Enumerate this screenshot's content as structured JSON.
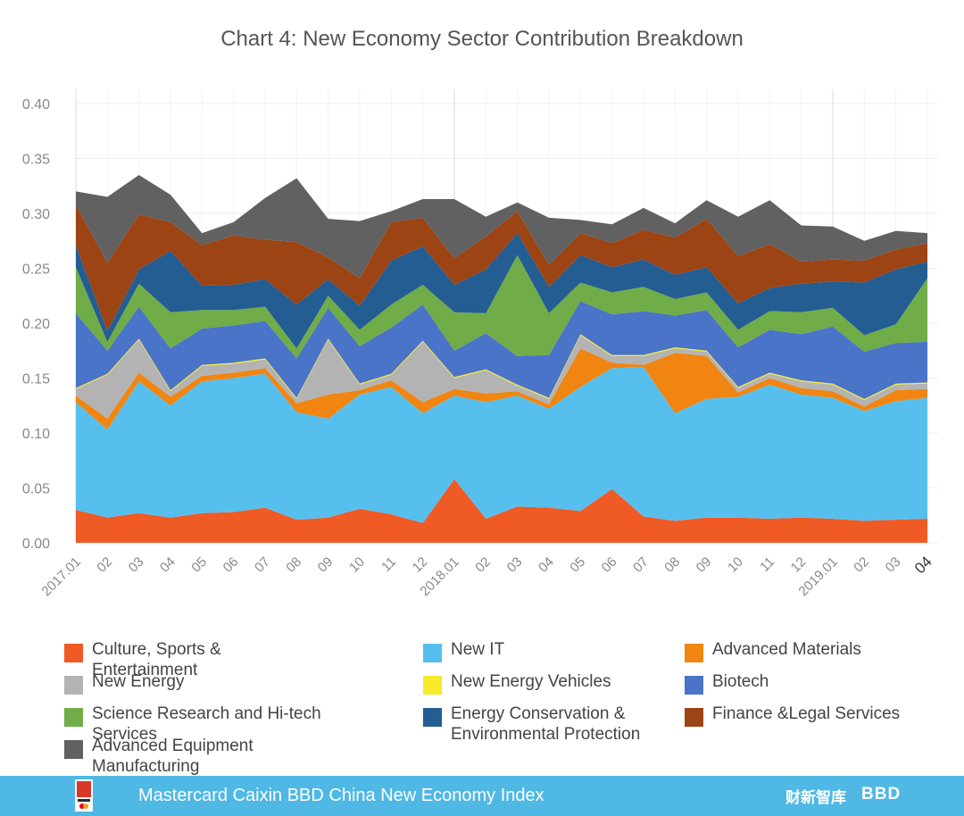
{
  "colors": {
    "culture": "#ef5a25",
    "new_it": "#56bfee",
    "advanced_materials": "#f08511",
    "new_energy": "#b3b3b3",
    "nev": "#f6ea2a",
    "biotech": "#4a74c8",
    "science": "#70ac47",
    "energy_conservation": "#245d92",
    "finance": "#9c4414",
    "equipment": "#616161",
    "footer_bg": "#4fb8e5"
  },
  "chart_data": {
    "type": "area",
    "stacked": true,
    "title": "Chart 4: New Economy Sector Contribution Breakdown",
    "xlabel": "",
    "ylabel": "",
    "ylim": [
      0,
      0.4
    ],
    "yticks": [
      "0.00",
      "0.05",
      "0.10",
      "0.15",
      "0.20",
      "0.25",
      "0.30",
      "0.35",
      "0.40"
    ],
    "x": [
      "2017.01",
      "02",
      "03",
      "04",
      "05",
      "06",
      "07",
      "08",
      "09",
      "10",
      "11",
      "12",
      "2018.01",
      "02",
      "03",
      "04",
      "05",
      "06",
      "07",
      "08",
      "09",
      "10",
      "11",
      "12",
      "2019.01",
      "02",
      "03",
      "04"
    ],
    "year_marker_indices": [
      0,
      12,
      24
    ],
    "series": [
      {
        "key": "culture",
        "name": "Culture, Sports & Entertainment",
        "values": [
          0.03,
          0.023,
          0.027,
          0.023,
          0.027,
          0.028,
          0.032,
          0.021,
          0.023,
          0.031,
          0.026,
          0.018,
          0.058,
          0.022,
          0.033,
          0.032,
          0.029,
          0.049,
          0.024,
          0.02,
          0.023,
          0.023,
          0.022,
          0.023,
          0.022,
          0.02,
          0.021,
          0.022
        ]
      },
      {
        "key": "new_it",
        "name": "New IT",
        "values": [
          0.098,
          0.08,
          0.12,
          0.102,
          0.12,
          0.122,
          0.122,
          0.098,
          0.09,
          0.104,
          0.116,
          0.1,
          0.076,
          0.106,
          0.101,
          0.09,
          0.113,
          0.11,
          0.136,
          0.098,
          0.108,
          0.11,
          0.122,
          0.112,
          0.11,
          0.1,
          0.108,
          0.11
        ]
      },
      {
        "key": "advanced_materials",
        "name": "Advanced Materials",
        "values": [
          0.006,
          0.01,
          0.008,
          0.008,
          0.005,
          0.005,
          0.005,
          0.008,
          0.022,
          0.004,
          0.006,
          0.01,
          0.006,
          0.008,
          0.004,
          0.004,
          0.035,
          0.005,
          0.002,
          0.055,
          0.039,
          0.004,
          0.006,
          0.006,
          0.006,
          0.004,
          0.01,
          0.008
        ]
      },
      {
        "key": "new_energy",
        "name": "New Energy",
        "values": [
          0.006,
          0.04,
          0.03,
          0.005,
          0.009,
          0.008,
          0.008,
          0.004,
          0.05,
          0.005,
          0.005,
          0.055,
          0.01,
          0.021,
          0.005,
          0.005,
          0.012,
          0.006,
          0.008,
          0.004,
          0.004,
          0.004,
          0.004,
          0.006,
          0.006,
          0.006,
          0.005,
          0.005
        ]
      },
      {
        "key": "nev",
        "name": "New Energy Vehicles",
        "values": [
          0.001,
          0.001,
          0.001,
          0.001,
          0.001,
          0.001,
          0.001,
          0.001,
          0.001,
          0.001,
          0.001,
          0.001,
          0.001,
          0.001,
          0.001,
          0.001,
          0.001,
          0.001,
          0.001,
          0.001,
          0.001,
          0.001,
          0.001,
          0.001,
          0.001,
          0.001,
          0.001,
          0.001
        ]
      },
      {
        "key": "biotech",
        "name": "Biotech",
        "values": [
          0.068,
          0.021,
          0.029,
          0.038,
          0.033,
          0.034,
          0.034,
          0.036,
          0.028,
          0.034,
          0.042,
          0.033,
          0.024,
          0.033,
          0.026,
          0.039,
          0.03,
          0.037,
          0.04,
          0.029,
          0.037,
          0.036,
          0.039,
          0.042,
          0.052,
          0.043,
          0.037,
          0.037
        ]
      },
      {
        "key": "science",
        "name": "Science Research and Hi-tech Services",
        "values": [
          0.042,
          0.008,
          0.021,
          0.033,
          0.017,
          0.014,
          0.013,
          0.009,
          0.011,
          0.015,
          0.021,
          0.018,
          0.035,
          0.018,
          0.092,
          0.038,
          0.017,
          0.02,
          0.022,
          0.015,
          0.016,
          0.016,
          0.017,
          0.02,
          0.017,
          0.015,
          0.017,
          0.058
        ]
      },
      {
        "key": "energy_conservation",
        "name": "Energy Conservation & Environmental Protection",
        "values": [
          0.02,
          0.01,
          0.013,
          0.056,
          0.022,
          0.023,
          0.025,
          0.04,
          0.015,
          0.022,
          0.04,
          0.035,
          0.025,
          0.04,
          0.02,
          0.024,
          0.025,
          0.023,
          0.025,
          0.022,
          0.023,
          0.024,
          0.021,
          0.026,
          0.024,
          0.048,
          0.05,
          0.015
        ]
      },
      {
        "key": "finance",
        "name": "Finance &Legal Services",
        "values": [
          0.037,
          0.062,
          0.05,
          0.026,
          0.037,
          0.045,
          0.036,
          0.057,
          0.02,
          0.025,
          0.035,
          0.026,
          0.024,
          0.03,
          0.02,
          0.02,
          0.02,
          0.022,
          0.027,
          0.034,
          0.044,
          0.043,
          0.04,
          0.02,
          0.02,
          0.02,
          0.018,
          0.017
        ]
      },
      {
        "key": "equipment",
        "name": "Advanced Equipment Manufacturing",
        "values": [
          0.012,
          0.06,
          0.036,
          0.025,
          0.011,
          0.012,
          0.038,
          0.058,
          0.035,
          0.052,
          0.01,
          0.017,
          0.054,
          0.018,
          0.008,
          0.043,
          0.012,
          0.017,
          0.02,
          0.013,
          0.017,
          0.036,
          0.04,
          0.033,
          0.03,
          0.018,
          0.017,
          0.009
        ]
      }
    ]
  },
  "legend": {
    "items": [
      {
        "key": "culture",
        "label": "Culture, Sports & Entertainment"
      },
      {
        "key": "new_it",
        "label": "New IT"
      },
      {
        "key": "advanced_materials",
        "label": "Advanced Materials"
      },
      {
        "key": "new_energy",
        "label": "New Energy"
      },
      {
        "key": "nev",
        "label": "New Energy Vehicles"
      },
      {
        "key": "biotech",
        "label": "Biotech"
      },
      {
        "key": "science",
        "label": "Science Research and Hi-tech Services"
      },
      {
        "key": "energy_conservation",
        "label": "Energy Conservation & Environmental Protection"
      },
      {
        "key": "finance",
        "label": "Finance &Legal Services"
      },
      {
        "key": "equipment",
        "label": "Advanced Equipment Manufacturing"
      }
    ]
  },
  "footer": {
    "title": "Mastercard Caixin BBD China New Economy Index",
    "brand1": "财新智库",
    "brand2": "BBD"
  }
}
